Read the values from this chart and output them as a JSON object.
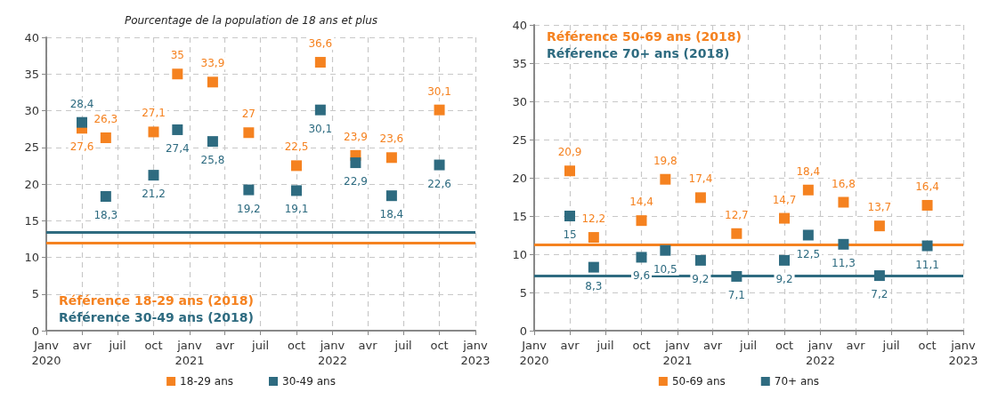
{
  "chart_data": [
    {
      "type": "scatter",
      "subtitle": "Pourcentage de la population de 18 ans et plus",
      "marker": "square",
      "grid": true,
      "legend": "bottom",
      "x": [
        "2020-04",
        "2020-06",
        "2020-10",
        "2020-12",
        "2021-03",
        "2021-06",
        "2021-10",
        "2021-12",
        "2022-03",
        "2022-06",
        "2022-10"
      ],
      "series": [
        {
          "name": "18-29 ans",
          "color": "#f58220",
          "values": [
            27.6,
            26.3,
            27.1,
            35,
            33.9,
            27,
            22.5,
            36.6,
            23.9,
            23.6,
            30.1
          ],
          "value_labels": [
            "27,6",
            "26,3",
            "27,1",
            "35",
            "33,9",
            "27",
            "22,5",
            "36,6",
            "23,9",
            "23,6",
            "30,1"
          ]
        },
        {
          "name": "30-49 ans",
          "color": "#2e6b80",
          "values": [
            28.4,
            18.3,
            21.2,
            27.4,
            25.8,
            19.2,
            19.1,
            30.1,
            22.9,
            18.4,
            22.6
          ],
          "value_labels": [
            "28,4",
            "18,3",
            "21,2",
            "27,4",
            "25,8",
            "19,2",
            "19,1",
            "30,1",
            "22,9",
            "18,4",
            "22,6"
          ]
        }
      ],
      "ref_lines": [
        {
          "axis": "y",
          "value": 12,
          "label": "Référence 18-29 ans (2018)",
          "color": "#f58220"
        },
        {
          "axis": "y",
          "value": 13.4,
          "label": "Référence 30-49 ans (2018)",
          "color": "#2e6b80"
        }
      ],
      "xlim": [
        "2020-01",
        "2023-01"
      ],
      "xticks": [
        {
          "value": "2020-01",
          "label": "Janv\n2020"
        },
        {
          "value": "2020-04",
          "label": "avr"
        },
        {
          "value": "2020-07",
          "label": "juil"
        },
        {
          "value": "2020-10",
          "label": "oct"
        },
        {
          "value": "2021-01",
          "label": "janv\n2021"
        },
        {
          "value": "2021-04",
          "label": "avr"
        },
        {
          "value": "2021-07",
          "label": "juil"
        },
        {
          "value": "2021-10",
          "label": "oct"
        },
        {
          "value": "2022-01",
          "label": "janv\n2022"
        },
        {
          "value": "2022-04",
          "label": "avr"
        },
        {
          "value": "2022-07",
          "label": "juil"
        },
        {
          "value": "2022-10",
          "label": "oct"
        },
        {
          "value": "2023-01",
          "label": "janv\n2023"
        }
      ],
      "ylim": [
        0,
        40
      ],
      "yticks": [
        0,
        5,
        10,
        15,
        20,
        25,
        30,
        35,
        40
      ]
    },
    {
      "type": "scatter",
      "marker": "square",
      "grid": true,
      "legend": "bottom",
      "x": [
        "2020-04",
        "2020-06",
        "2020-10",
        "2020-12",
        "2021-03",
        "2021-06",
        "2021-10",
        "2021-12",
        "2022-03",
        "2022-06",
        "2022-10"
      ],
      "series": [
        {
          "name": "50-69 ans",
          "color": "#f58220",
          "values": [
            20.9,
            12.2,
            14.4,
            19.8,
            17.4,
            12.7,
            14.7,
            18.4,
            16.8,
            13.7,
            16.4
          ],
          "value_labels": [
            "20,9",
            "12,2",
            "14,4",
            "19,8",
            "17,4",
            "12,7",
            "14,7",
            "18,4",
            "16,8",
            "13,7",
            "16,4"
          ]
        },
        {
          "name": "70+ ans",
          "color": "#2e6b80",
          "values": [
            15,
            8.3,
            9.6,
            10.5,
            9.2,
            7.1,
            9.2,
            12.5,
            11.3,
            7.2,
            11.1
          ],
          "value_labels": [
            "15",
            "8,3",
            "9,6",
            "10,5",
            "9,2",
            "7,1",
            "9,2",
            "12,5",
            "11,3",
            "7,2",
            "11,1"
          ]
        }
      ],
      "ref_lines": [
        {
          "axis": "y",
          "value": 11.3,
          "label": "Référence 50-69 ans (2018)",
          "color": "#f58220"
        },
        {
          "axis": "y",
          "value": 7.2,
          "label": "Référence 70+ ans (2018)",
          "color": "#2e6b80"
        }
      ],
      "xlim": [
        "2020-01",
        "2023-01"
      ],
      "xticks": [
        {
          "value": "2020-01",
          "label": "Janv\n2020"
        },
        {
          "value": "2020-04",
          "label": "avr"
        },
        {
          "value": "2020-07",
          "label": "juil"
        },
        {
          "value": "2020-10",
          "label": "oct"
        },
        {
          "value": "2021-01",
          "label": "janv\n2021"
        },
        {
          "value": "2021-04",
          "label": "avr"
        },
        {
          "value": "2021-07",
          "label": "juil"
        },
        {
          "value": "2021-10",
          "label": "oct"
        },
        {
          "value": "2022-01",
          "label": "janv\n2022"
        },
        {
          "value": "2022-04",
          "label": "avr"
        },
        {
          "value": "2022-07",
          "label": "juil"
        },
        {
          "value": "2022-10",
          "label": "oct"
        },
        {
          "value": "2023-01",
          "label": "janv\n2023"
        }
      ],
      "ylim": [
        0,
        40
      ],
      "yticks": [
        0,
        5,
        10,
        15,
        20,
        25,
        30,
        35,
        40
      ]
    }
  ]
}
